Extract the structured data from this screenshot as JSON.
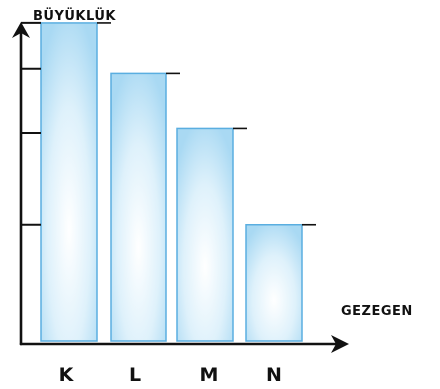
{
  "chart_data": {
    "type": "bar",
    "title": "",
    "ylabel": "BÜYÜKLÜK",
    "xlabel": "GEZEGEN",
    "categories": [
      "K",
      "L",
      "M",
      "N"
    ],
    "values": [
      3.5,
      2.95,
      2.35,
      1.3
    ],
    "ylim": [
      0,
      3.75
    ],
    "y_ticks": [
      1.3,
      2.3,
      3.0,
      3.5
    ],
    "grid": false,
    "bar_color": "#cfe9f8",
    "bar_edge_color": "#5aaee0",
    "axis_color": "#111111"
  }
}
